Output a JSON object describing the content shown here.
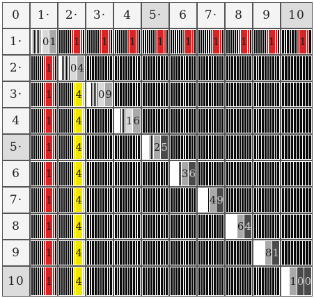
{
  "corner": "0",
  "col_headers": [
    "1·",
    "2·",
    "3·",
    "4",
    "5·",
    "6",
    "7·",
    "8",
    "9",
    "10"
  ],
  "row_headers": [
    "1·",
    "2·",
    "3·",
    "4",
    "5·",
    "6",
    "7·",
    "8",
    "9",
    "10"
  ],
  "highlighted_headers": [
    "5·",
    "10"
  ],
  "colors": {
    "black": "#0a0a0a",
    "red": "#d42626",
    "yellow": "#f2e600",
    "white": "#ffffff",
    "light_gray": "#d9d9d9",
    "mid_gray": "#a9a9a9",
    "dark_gray": "#4a4a4a",
    "border": "#555555"
  },
  "products": [
    [
      "01",
      "1",
      "1",
      "1",
      "1",
      "1",
      "1",
      "1",
      "1",
      "1"
    ],
    [
      "1",
      "04",
      "",
      "",
      "",
      "",
      "",
      "",
      "",
      ""
    ],
    [
      "1",
      "4",
      "09",
      "",
      "",
      "",
      "",
      "",
      "",
      ""
    ],
    [
      "1",
      "4",
      "",
      "16",
      "",
      "",
      "",
      "",
      "",
      ""
    ],
    [
      "1",
      "4",
      "",
      "",
      "25",
      "",
      "",
      "",
      "",
      ""
    ],
    [
      "1",
      "4",
      "",
      "",
      "",
      "36",
      "",
      "",
      "",
      ""
    ],
    [
      "1",
      "4",
      "",
      "",
      "",
      "",
      "49",
      "",
      "",
      ""
    ],
    [
      "1",
      "4",
      "",
      "",
      "",
      "",
      "",
      "64",
      "",
      ""
    ],
    [
      "1",
      "4",
      "",
      "",
      "",
      "",
      "",
      "",
      "81",
      ""
    ],
    [
      "1",
      "4",
      "",
      "",
      "",
      "",
      "",
      "",
      "",
      "100"
    ]
  ]
}
